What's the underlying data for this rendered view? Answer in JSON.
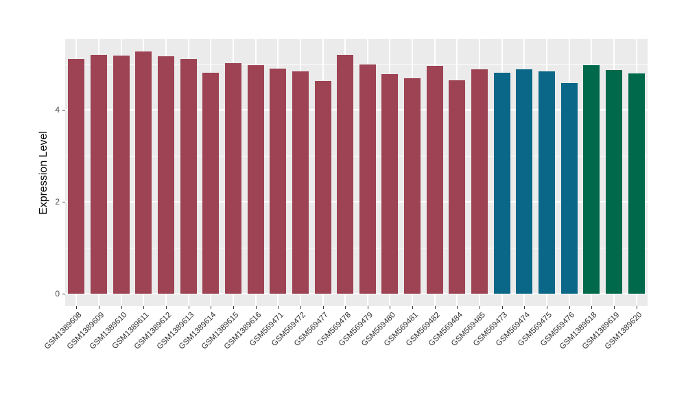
{
  "chart_data": {
    "type": "bar",
    "title": "",
    "xlabel": "",
    "ylabel": "Expression Level",
    "ylim": [
      0,
      5.54
    ],
    "grid": true,
    "legend_position": "none",
    "y_major_ticks": [
      0,
      2,
      4
    ],
    "y_minor_ticks": [
      1,
      3,
      5
    ],
    "y_tick_labels": [
      "0",
      "2",
      "4"
    ],
    "categories": [
      "GSM1389608",
      "GSM1389609",
      "GSM1389610",
      "GSM1389611",
      "GSM1389612",
      "GSM1389613",
      "GSM1389614",
      "GSM1389615",
      "GSM1389616",
      "GSM569471",
      "GSM569472",
      "GSM569477",
      "GSM569478",
      "GSM569479",
      "GSM569480",
      "GSM569481",
      "GSM569482",
      "GSM569484",
      "GSM569485",
      "GSM569473",
      "GSM569474",
      "GSM569475",
      "GSM569476",
      "GSM1389618",
      "GSM1389619",
      "GSM1389620"
    ],
    "values": [
      5.11,
      5.2,
      5.19,
      5.28,
      5.17,
      5.11,
      4.82,
      5.02,
      4.98,
      4.91,
      4.85,
      4.64,
      5.2,
      4.99,
      4.78,
      4.7,
      4.96,
      4.65,
      4.89,
      4.82,
      4.89,
      4.84,
      4.59,
      4.98,
      4.87,
      4.8
    ],
    "bar_groups": [
      "group1",
      "group1",
      "group1",
      "group1",
      "group1",
      "group1",
      "group1",
      "group1",
      "group1",
      "group1",
      "group1",
      "group1",
      "group1",
      "group1",
      "group1",
      "group1",
      "group1",
      "group1",
      "group1",
      "group2",
      "group2",
      "group2",
      "group2",
      "group3",
      "group3",
      "group3"
    ],
    "group_colors": {
      "group1": "#9D4353",
      "group2": "#0A6787",
      "group3": "#00694B"
    }
  },
  "style_colors": {
    "panel_background": "#EBEBEB",
    "gridline": "#FFFFFF",
    "figure_background": "#FFFFFF",
    "tick_mark": "#333333",
    "axis_text": "#303030"
  }
}
